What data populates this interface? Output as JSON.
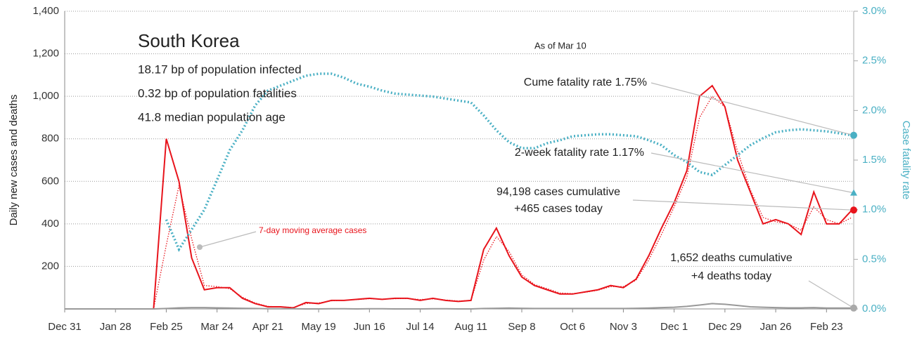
{
  "chart_data": {
    "type": "line",
    "title": "South Korea",
    "subtitle_lines": [
      "18.17 bp of population infected",
      "0.32 bp of population fatalities",
      "41.8 median population age"
    ],
    "as_of": "As of Mar 10",
    "ylabel": "Daily new cases and deaths",
    "y2label": "Case fatality rate",
    "categories": [
      "Dec 31",
      null,
      null,
      null,
      "Jan 28",
      null,
      null,
      null,
      "Feb 25",
      null,
      null,
      null,
      "Mar 24",
      null,
      null,
      null,
      "Apr 21",
      null,
      null,
      null,
      "May 19",
      null,
      null,
      null,
      "Jun 16",
      null,
      null,
      null,
      "Jul 14",
      null,
      null,
      null,
      "Aug 11",
      null,
      null,
      null,
      "Sep 8",
      null,
      null,
      null,
      "Oct 6",
      null,
      null,
      null,
      "Nov 3",
      null,
      null,
      null,
      "Dec 1",
      null,
      null,
      null,
      "Dec 29",
      null,
      null,
      null,
      "Jan 26",
      null,
      null,
      null,
      "Feb 23",
      null,
      null
    ],
    "series": [
      {
        "name": "Daily new cases",
        "color": "#e8141c",
        "style": "solid",
        "values": [
          0,
          0,
          0,
          0,
          0,
          0,
          0,
          0,
          800,
          600,
          240,
          90,
          100,
          100,
          50,
          25,
          10,
          10,
          5,
          30,
          25,
          40,
          40,
          45,
          50,
          45,
          50,
          50,
          40,
          50,
          40,
          35,
          40,
          280,
          380,
          250,
          150,
          110,
          90,
          70,
          70,
          80,
          90,
          110,
          100,
          140,
          250,
          380,
          500,
          650,
          1000,
          1050,
          950,
          700,
          550,
          400,
          420,
          400,
          350,
          550,
          400,
          400,
          465
        ]
      },
      {
        "name": "7-day moving average cases",
        "color": "#e8141c",
        "style": "dotted",
        "values": [
          0,
          0,
          0,
          0,
          0,
          0,
          0,
          0,
          300,
          580,
          330,
          110,
          105,
          95,
          55,
          28,
          12,
          10,
          7,
          25,
          28,
          38,
          40,
          44,
          48,
          46,
          48,
          49,
          44,
          47,
          42,
          37,
          40,
          230,
          340,
          270,
          160,
          115,
          95,
          75,
          72,
          78,
          88,
          105,
          105,
          135,
          230,
          350,
          480,
          620,
          900,
          1000,
          950,
          740,
          560,
          430,
          410,
          400,
          370,
          480,
          420,
          400,
          430
        ]
      },
      {
        "name": "Daily deaths",
        "color": "#999999",
        "style": "solid",
        "values": [
          0,
          0,
          0,
          0,
          0,
          0,
          0,
          0,
          2,
          5,
          6,
          6,
          5,
          4,
          3,
          2,
          1,
          1,
          1,
          0,
          0,
          1,
          1,
          0,
          1,
          1,
          0,
          0,
          0,
          1,
          1,
          0,
          0,
          2,
          3,
          4,
          3,
          2,
          2,
          2,
          2,
          2,
          2,
          2,
          2,
          3,
          4,
          6,
          8,
          12,
          18,
          25,
          22,
          16,
          10,
          8,
          6,
          5,
          5,
          6,
          4,
          4,
          4
        ]
      },
      {
        "name": "Case fatality rate",
        "color": "#4ab0c4",
        "style": "dotted",
        "axis": "y2",
        "values": [
          null,
          null,
          null,
          null,
          null,
          null,
          null,
          null,
          0.9,
          0.6,
          0.8,
          1.0,
          1.3,
          1.6,
          1.8,
          2.05,
          2.2,
          2.25,
          2.3,
          2.35,
          2.37,
          2.37,
          2.33,
          2.27,
          2.24,
          2.2,
          2.17,
          2.16,
          2.15,
          2.14,
          2.12,
          2.1,
          2.08,
          1.95,
          1.8,
          1.68,
          1.62,
          1.62,
          1.67,
          1.7,
          1.74,
          1.75,
          1.76,
          1.76,
          1.75,
          1.74,
          1.7,
          1.65,
          1.55,
          1.48,
          1.38,
          1.35,
          1.45,
          1.55,
          1.65,
          1.72,
          1.78,
          1.8,
          1.81,
          1.8,
          1.79,
          1.77,
          1.75
        ]
      }
    ],
    "two_week_rate": 1.17,
    "annotations": [
      "Cume fatality rate 1.75%",
      "2-week fatality rate 1.17%",
      "94,198 cases cumulative",
      "+465 cases today",
      "1,652 deaths cumulative",
      "+4 deaths today",
      "7-day moving average cases"
    ],
    "ylim": [
      0,
      1400
    ],
    "yticks": [
      200,
      400,
      600,
      800,
      {
        "value": 1000,
        "label": "1,000"
      },
      {
        "value": 1200,
        "label": "1,200"
      },
      {
        "value": 1400,
        "label": "1,400"
      }
    ],
    "y2lim": [
      0,
      3
    ],
    "y2ticks": [
      {
        "value": 0,
        "label": "0.0%"
      },
      {
        "value": 0.5,
        "label": "0.5%"
      },
      {
        "value": 1,
        "label": "1.0%"
      },
      {
        "value": 1.5,
        "label": "1.5%"
      },
      {
        "value": 2,
        "label": "2.0%"
      },
      {
        "value": 2.5,
        "label": "2.5%"
      },
      {
        "value": 3,
        "label": "3.0%"
      }
    ],
    "grid": true
  }
}
